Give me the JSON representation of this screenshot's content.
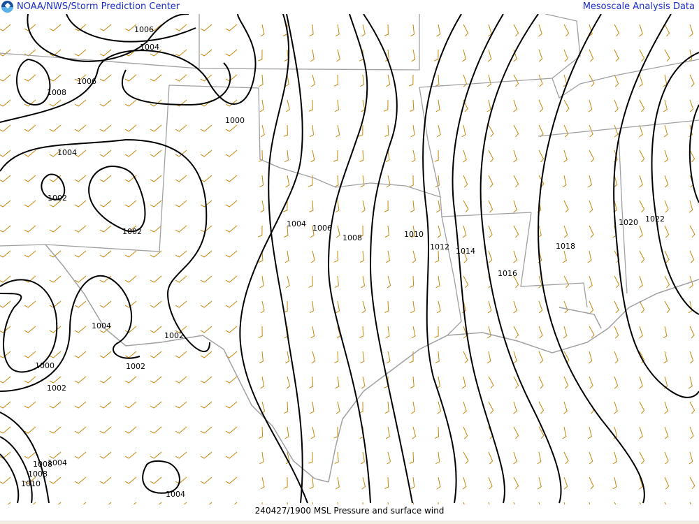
{
  "header": {
    "left_title": "NOAA/NWS/Storm Prediction Center",
    "right_title": "Mesoscale Analysis Data",
    "logo": "noaa-logo"
  },
  "footer": {
    "caption": "240427/1900 MSL Pressure and surface wind"
  },
  "colors": {
    "isobar": "#000000",
    "wind_barb": "#c8860a",
    "borders": "#a0a0a0",
    "title": "#1a2dcc"
  },
  "isobar_labels": [
    "1006",
    "1004",
    "1006",
    "1008",
    "1000",
    "1004",
    "1002",
    "1002",
    "1004",
    "1006",
    "1008",
    "1010",
    "1012",
    "1014",
    "1016",
    "1018",
    "1020",
    "1022",
    "1004",
    "1002",
    "1002",
    "1000",
    "1002",
    "1008",
    "1004",
    "1008",
    "1010",
    "1004"
  ]
}
